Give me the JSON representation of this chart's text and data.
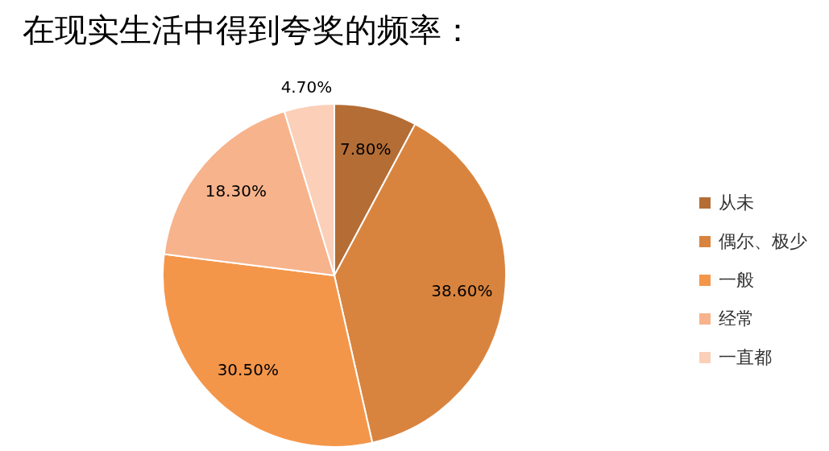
{
  "chart_data": {
    "type": "pie",
    "title": "在现实生活中得到夸奖的频率：",
    "categories": [
      "从未",
      "偶尔、极少",
      "一般",
      "经常",
      "一直都"
    ],
    "values": [
      7.8,
      38.6,
      30.5,
      18.3,
      4.7
    ],
    "value_labels": [
      "7.80%",
      "38.60%",
      "30.50%",
      "18.30%",
      "4.70%"
    ],
    "colors": [
      "#b46d35",
      "#d9843e",
      "#f4964a",
      "#f7b38c",
      "#fbcfb8"
    ],
    "legend": "right"
  }
}
